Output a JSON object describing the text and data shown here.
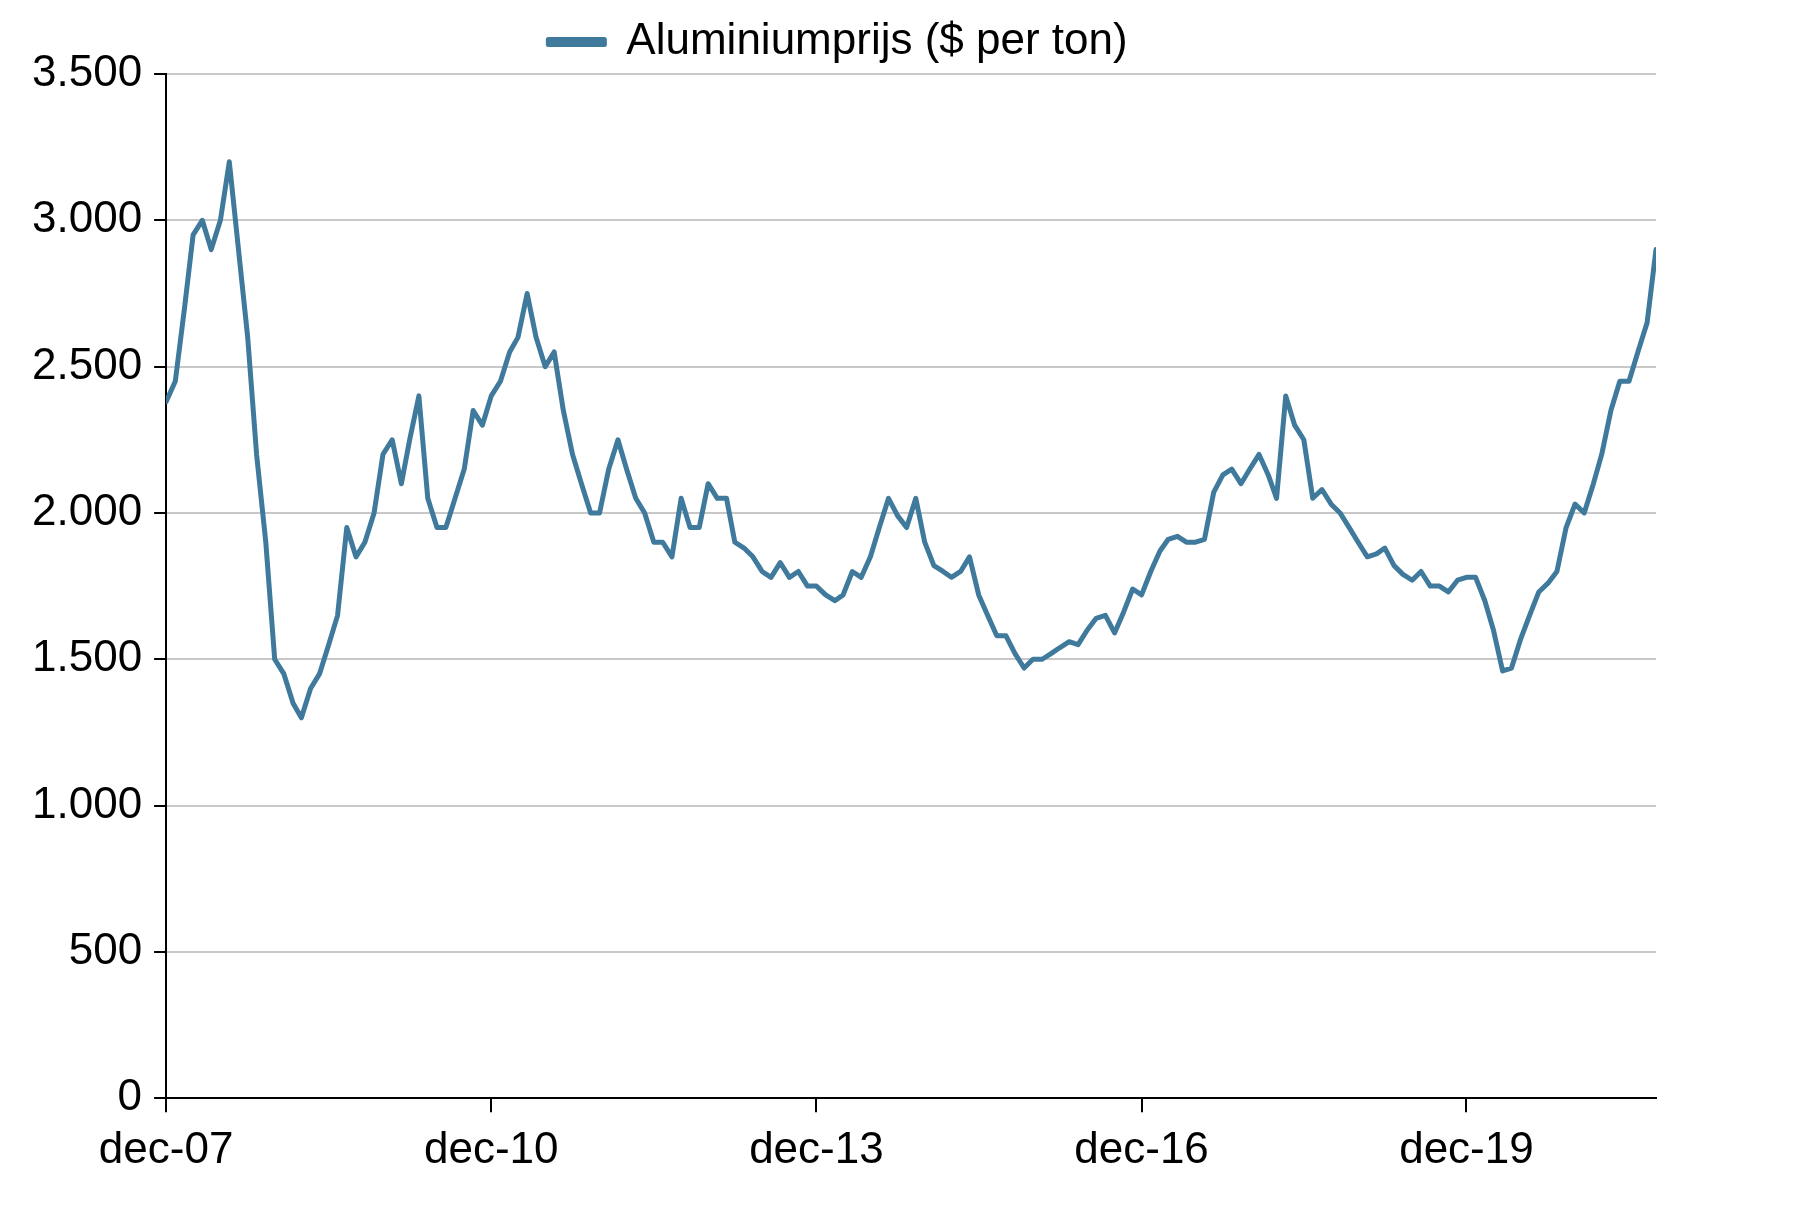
{
  "chart_data": {
    "type": "line",
    "legend": "top",
    "grid": "y",
    "marker": "none",
    "line_style": "solid",
    "xlim": [
      "2007-12-01",
      "2021-08-31"
    ],
    "xticks": [
      {
        "value": "2007-12-01",
        "label": "dec-07"
      },
      {
        "value": "2010-12-01",
        "label": "dec-10"
      },
      {
        "value": "2013-12-01",
        "label": "dec-13"
      },
      {
        "value": "2016-12-01",
        "label": "dec-16"
      },
      {
        "value": "2019-12-01",
        "label": "dec-19"
      }
    ],
    "ylim": [
      0,
      3500
    ],
    "yticks": [
      0,
      500,
      {
        "value": 1000,
        "label": "1.000"
      },
      {
        "value": 1500,
        "label": "1.500"
      },
      {
        "value": 2000,
        "label": "2.000"
      },
      {
        "value": 2500,
        "label": "2.500"
      },
      {
        "value": 3000,
        "label": "3.000"
      },
      {
        "value": 3500,
        "label": "3.500"
      }
    ],
    "x": [
      "2007-12",
      "2008-01",
      "2008-02",
      "2008-03",
      "2008-04",
      "2008-05",
      "2008-06",
      "2008-07",
      "2008-08",
      "2008-09",
      "2008-10",
      "2008-11",
      "2008-12",
      "2009-01",
      "2009-02",
      "2009-03",
      "2009-04",
      "2009-05",
      "2009-06",
      "2009-07",
      "2009-08",
      "2009-09",
      "2009-10",
      "2009-11",
      "2009-12",
      "2010-01",
      "2010-02",
      "2010-03",
      "2010-04",
      "2010-05",
      "2010-06",
      "2010-07",
      "2010-08",
      "2010-09",
      "2010-10",
      "2010-11",
      "2010-12",
      "2011-01",
      "2011-02",
      "2011-03",
      "2011-04",
      "2011-05",
      "2011-06",
      "2011-07",
      "2011-08",
      "2011-09",
      "2011-10",
      "2011-11",
      "2011-12",
      "2012-01",
      "2012-02",
      "2012-03",
      "2012-04",
      "2012-05",
      "2012-06",
      "2012-07",
      "2012-08",
      "2012-09",
      "2012-10",
      "2012-11",
      "2012-12",
      "2013-01",
      "2013-02",
      "2013-03",
      "2013-04",
      "2013-05",
      "2013-06",
      "2013-07",
      "2013-08",
      "2013-09",
      "2013-10",
      "2013-11",
      "2013-12",
      "2014-01",
      "2014-02",
      "2014-03",
      "2014-04",
      "2014-05",
      "2014-06",
      "2014-07",
      "2014-08",
      "2014-09",
      "2014-10",
      "2014-11",
      "2014-12",
      "2015-01",
      "2015-02",
      "2015-03",
      "2015-04",
      "2015-05",
      "2015-06",
      "2015-07",
      "2015-08",
      "2015-09",
      "2015-10",
      "2015-11",
      "2015-12",
      "2016-01",
      "2016-02",
      "2016-03",
      "2016-04",
      "2016-05",
      "2016-06",
      "2016-07",
      "2016-08",
      "2016-09",
      "2016-10",
      "2016-11",
      "2016-12",
      "2017-01",
      "2017-02",
      "2017-03",
      "2017-04",
      "2017-05",
      "2017-06",
      "2017-07",
      "2017-08",
      "2017-09",
      "2017-10",
      "2017-11",
      "2017-12",
      "2018-01",
      "2018-02",
      "2018-03",
      "2018-04",
      "2018-05",
      "2018-06",
      "2018-07",
      "2018-08",
      "2018-09",
      "2018-10",
      "2018-11",
      "2018-12",
      "2019-01",
      "2019-02",
      "2019-03",
      "2019-04",
      "2019-05",
      "2019-06",
      "2019-07",
      "2019-08",
      "2019-09",
      "2019-10",
      "2019-11",
      "2019-12",
      "2020-01",
      "2020-02",
      "2020-03",
      "2020-04",
      "2020-05",
      "2020-06",
      "2020-07",
      "2020-08",
      "2020-09",
      "2020-10",
      "2020-11",
      "2020-12",
      "2021-01",
      "2021-02",
      "2021-03",
      "2021-04",
      "2021-05",
      "2021-06",
      "2021-07",
      "2021-08",
      "2021-08-31"
    ],
    "series": [
      {
        "name": "Aluminiumprijs ($ per ton)",
        "color": "#3f7a9c",
        "values": [
          2380,
          2450,
          2700,
          2950,
          3000,
          2900,
          3000,
          3200,
          2900,
          2600,
          2200,
          1900,
          1500,
          1450,
          1350,
          1300,
          1400,
          1450,
          1550,
          1650,
          1950,
          1850,
          1900,
          2000,
          2200,
          2250,
          2100,
          2250,
          2400,
          2050,
          1950,
          1950,
          2050,
          2150,
          2350,
          2300,
          2400,
          2450,
          2550,
          2600,
          2750,
          2600,
          2500,
          2550,
          2350,
          2200,
          2100,
          2000,
          2000,
          2150,
          2250,
          2150,
          2050,
          2000,
          1900,
          1900,
          1850,
          2050,
          1950,
          1950,
          2100,
          2050,
          2050,
          1900,
          1880,
          1850,
          1800,
          1780,
          1830,
          1780,
          1800,
          1750,
          1750,
          1720,
          1700,
          1720,
          1800,
          1780,
          1850,
          1950,
          2050,
          1990,
          1950,
          2050,
          1900,
          1820,
          1800,
          1780,
          1800,
          1850,
          1720,
          1650,
          1580,
          1580,
          1520,
          1470,
          1500,
          1500,
          1520,
          1540,
          1560,
          1550,
          1600,
          1640,
          1650,
          1590,
          1660,
          1740,
          1720,
          1800,
          1870,
          1910,
          1920,
          1900,
          1900,
          1910,
          2070,
          2130,
          2150,
          2100,
          2150,
          2200,
          2130,
          2050,
          2400,
          2300,
          2250,
          2050,
          2080,
          2030,
          2000,
          1950,
          1900,
          1850,
          1860,
          1880,
          1820,
          1790,
          1770,
          1800,
          1750,
          1750,
          1730,
          1770,
          1780,
          1780,
          1700,
          1600,
          1460,
          1470,
          1570,
          1650,
          1730,
          1760,
          1800,
          1950,
          2030,
          2000,
          2100,
          2200,
          2350,
          2450,
          2450,
          2550,
          2650,
          2900
        ]
      }
    ]
  }
}
